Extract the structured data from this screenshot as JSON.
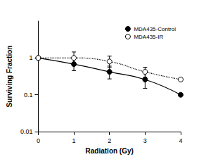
{
  "chart_data": {
    "type": "line",
    "x_label": "Radiation (Gy)",
    "y_label": "Surviving Fraction",
    "log": "y",
    "grid": false,
    "legend": "upper right",
    "xlim": [
      0,
      4
    ],
    "xticks": [
      0,
      1,
      2,
      3,
      4
    ],
    "ylim": [
      0.01,
      10
    ],
    "yticks": [
      0.01,
      0.1,
      1
    ],
    "series": [
      {
        "name": "MDA435-Control",
        "color": "#000000",
        "marker": "filled",
        "line_style": "solid",
        "x": [
          0,
          1,
          2,
          3,
          4
        ],
        "values": [
          1,
          0.68,
          0.42,
          0.26,
          0.1
        ],
        "error_bounds": [
          null,
          [
            0.45,
            0.92
          ],
          [
            0.27,
            0.6
          ],
          [
            0.15,
            0.4
          ],
          null
        ]
      },
      {
        "name": "MDA435-IR",
        "color": "#000000",
        "marker": "open",
        "line_style": "dotted",
        "x": [
          0,
          1,
          2,
          3,
          4
        ],
        "values": [
          1,
          1.0,
          0.8,
          0.42,
          0.26
        ],
        "error_bounds": [
          null,
          [
            0.7,
            1.45
          ],
          [
            0.55,
            1.12
          ],
          [
            0.3,
            0.56
          ],
          null
        ]
      }
    ]
  }
}
